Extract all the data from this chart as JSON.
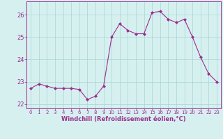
{
  "x": [
    0,
    1,
    2,
    3,
    4,
    5,
    6,
    7,
    8,
    9,
    10,
    11,
    12,
    13,
    14,
    15,
    16,
    17,
    18,
    19,
    20,
    21,
    22,
    23
  ],
  "y": [
    22.7,
    22.9,
    22.8,
    22.7,
    22.7,
    22.7,
    22.65,
    22.2,
    22.35,
    22.8,
    25.0,
    25.6,
    25.3,
    25.15,
    25.15,
    26.1,
    26.15,
    25.8,
    25.65,
    25.8,
    25.0,
    24.1,
    23.35,
    23.0
  ],
  "line_color": "#9b2d8e",
  "marker": "D",
  "marker_size": 2,
  "bg_color": "#d6f0f0",
  "grid_color": "#a8d4d4",
  "xlabel": "Windchill (Refroidissement éolien,°C)",
  "xlabel_color": "#9b2d8e",
  "tick_color": "#9b2d8e",
  "spine_color": "#9b2d8e",
  "ylim": [
    21.8,
    26.6
  ],
  "yticks": [
    22,
    23,
    24,
    25,
    26
  ],
  "xticks": [
    0,
    1,
    2,
    3,
    4,
    5,
    6,
    7,
    8,
    9,
    10,
    11,
    12,
    13,
    14,
    15,
    16,
    17,
    18,
    19,
    20,
    21,
    22,
    23
  ]
}
